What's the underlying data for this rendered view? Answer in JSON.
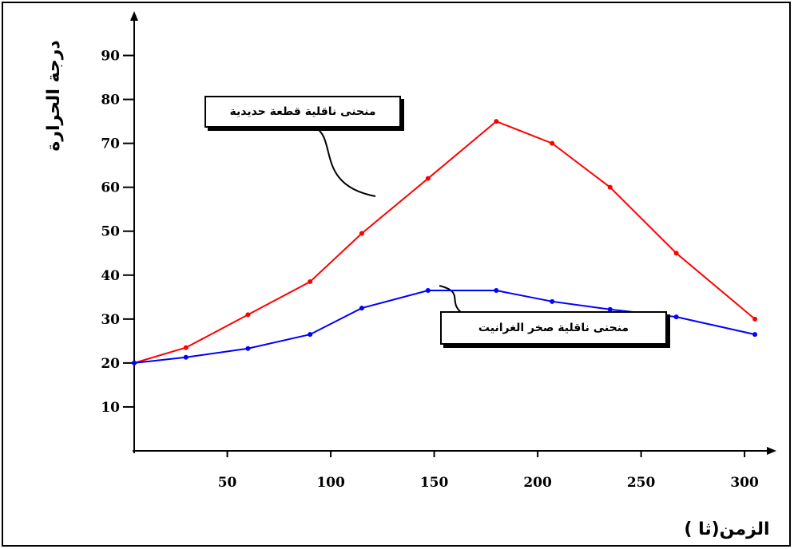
{
  "chart_data": {
    "type": "line",
    "ylabel": "درجة الحرارة",
    "xlabel": "الزمن(ثا )",
    "xlim": [
      5,
      310
    ],
    "ylim": [
      0,
      95
    ],
    "x_ticks": [
      50,
      100,
      150,
      200,
      250,
      300
    ],
    "y_ticks": [
      10,
      20,
      30,
      40,
      50,
      60,
      70,
      80,
      90
    ],
    "series": [
      {
        "name": "منحنى ناقلية قطعة حديدية",
        "color": "#ff0000",
        "points": [
          [
            5,
            20
          ],
          [
            30,
            23.5
          ],
          [
            60,
            31
          ],
          [
            90,
            38.5
          ],
          [
            115,
            49.5
          ],
          [
            147,
            62
          ],
          [
            180,
            75
          ],
          [
            207,
            70
          ],
          [
            235,
            60
          ],
          [
            267,
            45
          ],
          [
            305,
            30
          ]
        ]
      },
      {
        "name": "منحنى ناقلية صخر الغرانيت",
        "color": "#0000ff",
        "points": [
          [
            5,
            20
          ],
          [
            30,
            21.3
          ],
          [
            60,
            23.3
          ],
          [
            90,
            26.5
          ],
          [
            115,
            32.5
          ],
          [
            147,
            36.5
          ],
          [
            180,
            36.5
          ],
          [
            207,
            34
          ],
          [
            235,
            32.2
          ],
          [
            267,
            30.5
          ],
          [
            305,
            26.5
          ]
        ]
      }
    ]
  }
}
